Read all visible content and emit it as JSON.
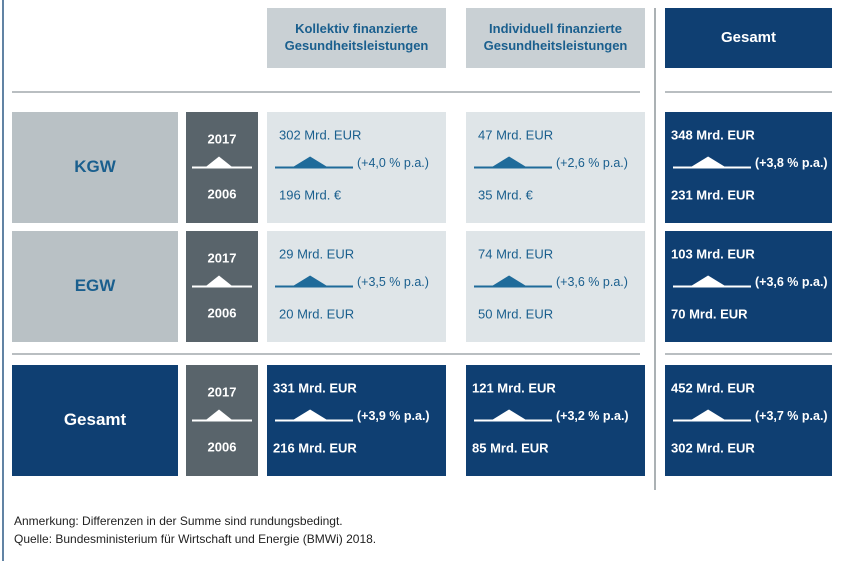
{
  "header": {
    "columns": [
      "Kollektiv finanzierte Gesundheitsleistungen",
      "Individuell finanzierte Gesundheitsleistungen",
      "Gesamt"
    ]
  },
  "years": {
    "top": "2017",
    "bottom": "2006"
  },
  "rows": [
    {
      "label": "KGW",
      "cells": [
        {
          "top": "302 Mrd. EUR",
          "growth": "(+4,0 % p.a.)",
          "bottom": "196 Mrd. €"
        },
        {
          "top": "47 Mrd. EUR",
          "growth": "(+2,6 % p.a.)",
          "bottom": "35 Mrd. €"
        },
        {
          "top": "348 Mrd. EUR",
          "growth": "(+3,8 % p.a.)",
          "bottom": "231 Mrd. EUR"
        }
      ]
    },
    {
      "label": "EGW",
      "cells": [
        {
          "top": "29 Mrd. EUR",
          "growth": "(+3,5 % p.a.)",
          "bottom": "20 Mrd. EUR"
        },
        {
          "top": "74 Mrd. EUR",
          "growth": "(+3,6 % p.a.)",
          "bottom": "50 Mrd. EUR"
        },
        {
          "top": "103 Mrd. EUR",
          "growth": "(+3,6 % p.a.)",
          "bottom": "70 Mrd. EUR"
        }
      ]
    },
    {
      "label": "Gesamt",
      "cells": [
        {
          "top": "331 Mrd. EUR",
          "growth": "(+3,9 % p.a.)",
          "bottom": "216 Mrd. EUR"
        },
        {
          "top": "121 Mrd. EUR",
          "growth": "(+3,2 % p.a.)",
          "bottom": "85 Mrd. EUR"
        },
        {
          "top": "452 Mrd. EUR",
          "growth": "(+3,7 % p.a.)",
          "bottom": "302 Mrd. EUR"
        }
      ]
    }
  ],
  "footer": {
    "note": "Anmerkung: Differenzen in der Summe sind rundungsbedingt.",
    "source": "Quelle: Bundesministerium für Wirtschaft und Energie (BMWi) 2018."
  }
}
